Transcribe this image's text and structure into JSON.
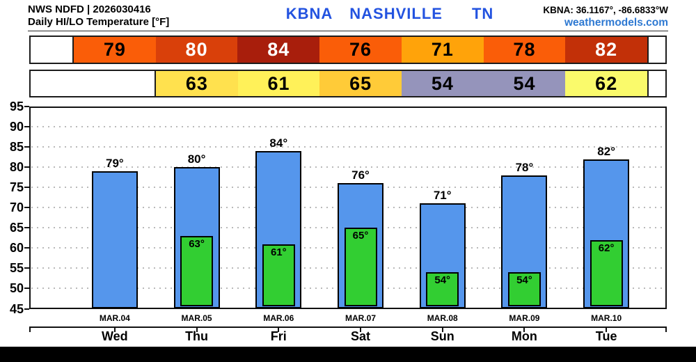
{
  "header": {
    "model_line": "NWS NDFD | 2026030416",
    "product_line": "Daily HI/LO Temperature [°F]",
    "station_code": "KBNA",
    "station_name": "NASHVILLE",
    "station_state": "TN",
    "title_color": "#2353e0",
    "coords": "KBNA: 36.1167°, -86.6833°W",
    "site": "weathermodels.com",
    "site_color": "#2e79d2"
  },
  "hi_strip": {
    "cells": [
      {
        "label": "79",
        "bg": "#fa5d08",
        "fg": "#000000"
      },
      {
        "label": "80",
        "bg": "#d9400a",
        "fg": "#ffffff"
      },
      {
        "label": "84",
        "bg": "#a81e0c",
        "fg": "#ffffff"
      },
      {
        "label": "76",
        "bg": "#fa5d08",
        "fg": "#000000"
      },
      {
        "label": "71",
        "bg": "#ffa30a",
        "fg": "#000000"
      },
      {
        "label": "78",
        "bg": "#fa5d08",
        "fg": "#000000"
      },
      {
        "label": "82",
        "bg": "#c23008",
        "fg": "#ffffff"
      }
    ]
  },
  "lo_strip": {
    "cells": [
      {
        "label": "63",
        "bg": "#ffe14e",
        "fg": "#000000"
      },
      {
        "label": "61",
        "bg": "#fff159",
        "fg": "#000000"
      },
      {
        "label": "65",
        "bg": "#ffcb38",
        "fg": "#000000"
      },
      {
        "label": "54",
        "bg": "#9594bb",
        "fg": "#000000"
      },
      {
        "label": "54",
        "bg": "#9594bb",
        "fg": "#000000"
      },
      {
        "label": "62",
        "bg": "#fafa6b",
        "fg": "#000000"
      }
    ]
  },
  "chart_data": {
    "type": "bar",
    "title": "Daily HI/LO Temperature [°F]",
    "unit": "°F",
    "categories": [
      "Wed",
      "Thu",
      "Fri",
      "Sat",
      "Sun",
      "Mon",
      "Tue"
    ],
    "dates": [
      "MAR.04",
      "MAR.05",
      "MAR.06",
      "MAR.07",
      "MAR.08",
      "MAR.09",
      "MAR.10"
    ],
    "series": [
      {
        "name": "High",
        "color": "#5596ec",
        "values": [
          79,
          80,
          84,
          76,
          71,
          78,
          82
        ]
      },
      {
        "name": "Low",
        "color": "#32ce32",
        "values": [
          null,
          63,
          61,
          65,
          54,
          54,
          62
        ]
      }
    ],
    "ylim": [
      45,
      95
    ],
    "ytick_step": 5,
    "grid": true,
    "legend": "none",
    "label_suffix": "°"
  }
}
